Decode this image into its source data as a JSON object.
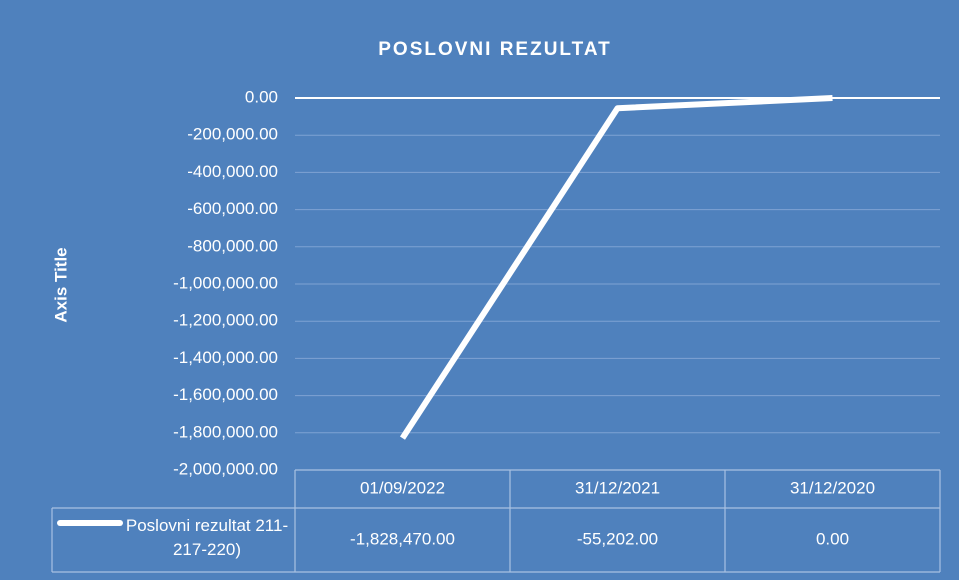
{
  "chart_data": {
    "type": "line",
    "title": "POSLOVNI REZULTAT",
    "y_label": "Axis Title",
    "categories": [
      "01/09/2022",
      "31/12/2021",
      "31/12/2020"
    ],
    "series": [
      {
        "name": "Poslovni rezultat 211-217-220)",
        "color": "#ffffff",
        "values": [
          -1828470,
          -55202,
          0
        ],
        "value_labels": [
          "-1,828,470.00",
          "-55,202.00",
          "0.00"
        ]
      }
    ],
    "ylim": [
      -2000000,
      0
    ],
    "yticks": [
      {
        "value": 0,
        "label": "0.00"
      },
      {
        "value": -200000,
        "label": "-200,000.00"
      },
      {
        "value": -400000,
        "label": "-400,000.00"
      },
      {
        "value": -600000,
        "label": "-600,000.00"
      },
      {
        "value": -800000,
        "label": "-800,000.00"
      },
      {
        "value": -1000000,
        "label": "-1,000,000.00"
      },
      {
        "value": -1200000,
        "label": "-1,200,000.00"
      },
      {
        "value": -1400000,
        "label": "-1,400,000.00"
      },
      {
        "value": -1600000,
        "label": "-1,600,000.00"
      },
      {
        "value": -1800000,
        "label": "-1,800,000.00"
      },
      {
        "value": -2000000,
        "label": "-2,000,000.00"
      }
    ],
    "grid": true,
    "data_table": true
  }
}
